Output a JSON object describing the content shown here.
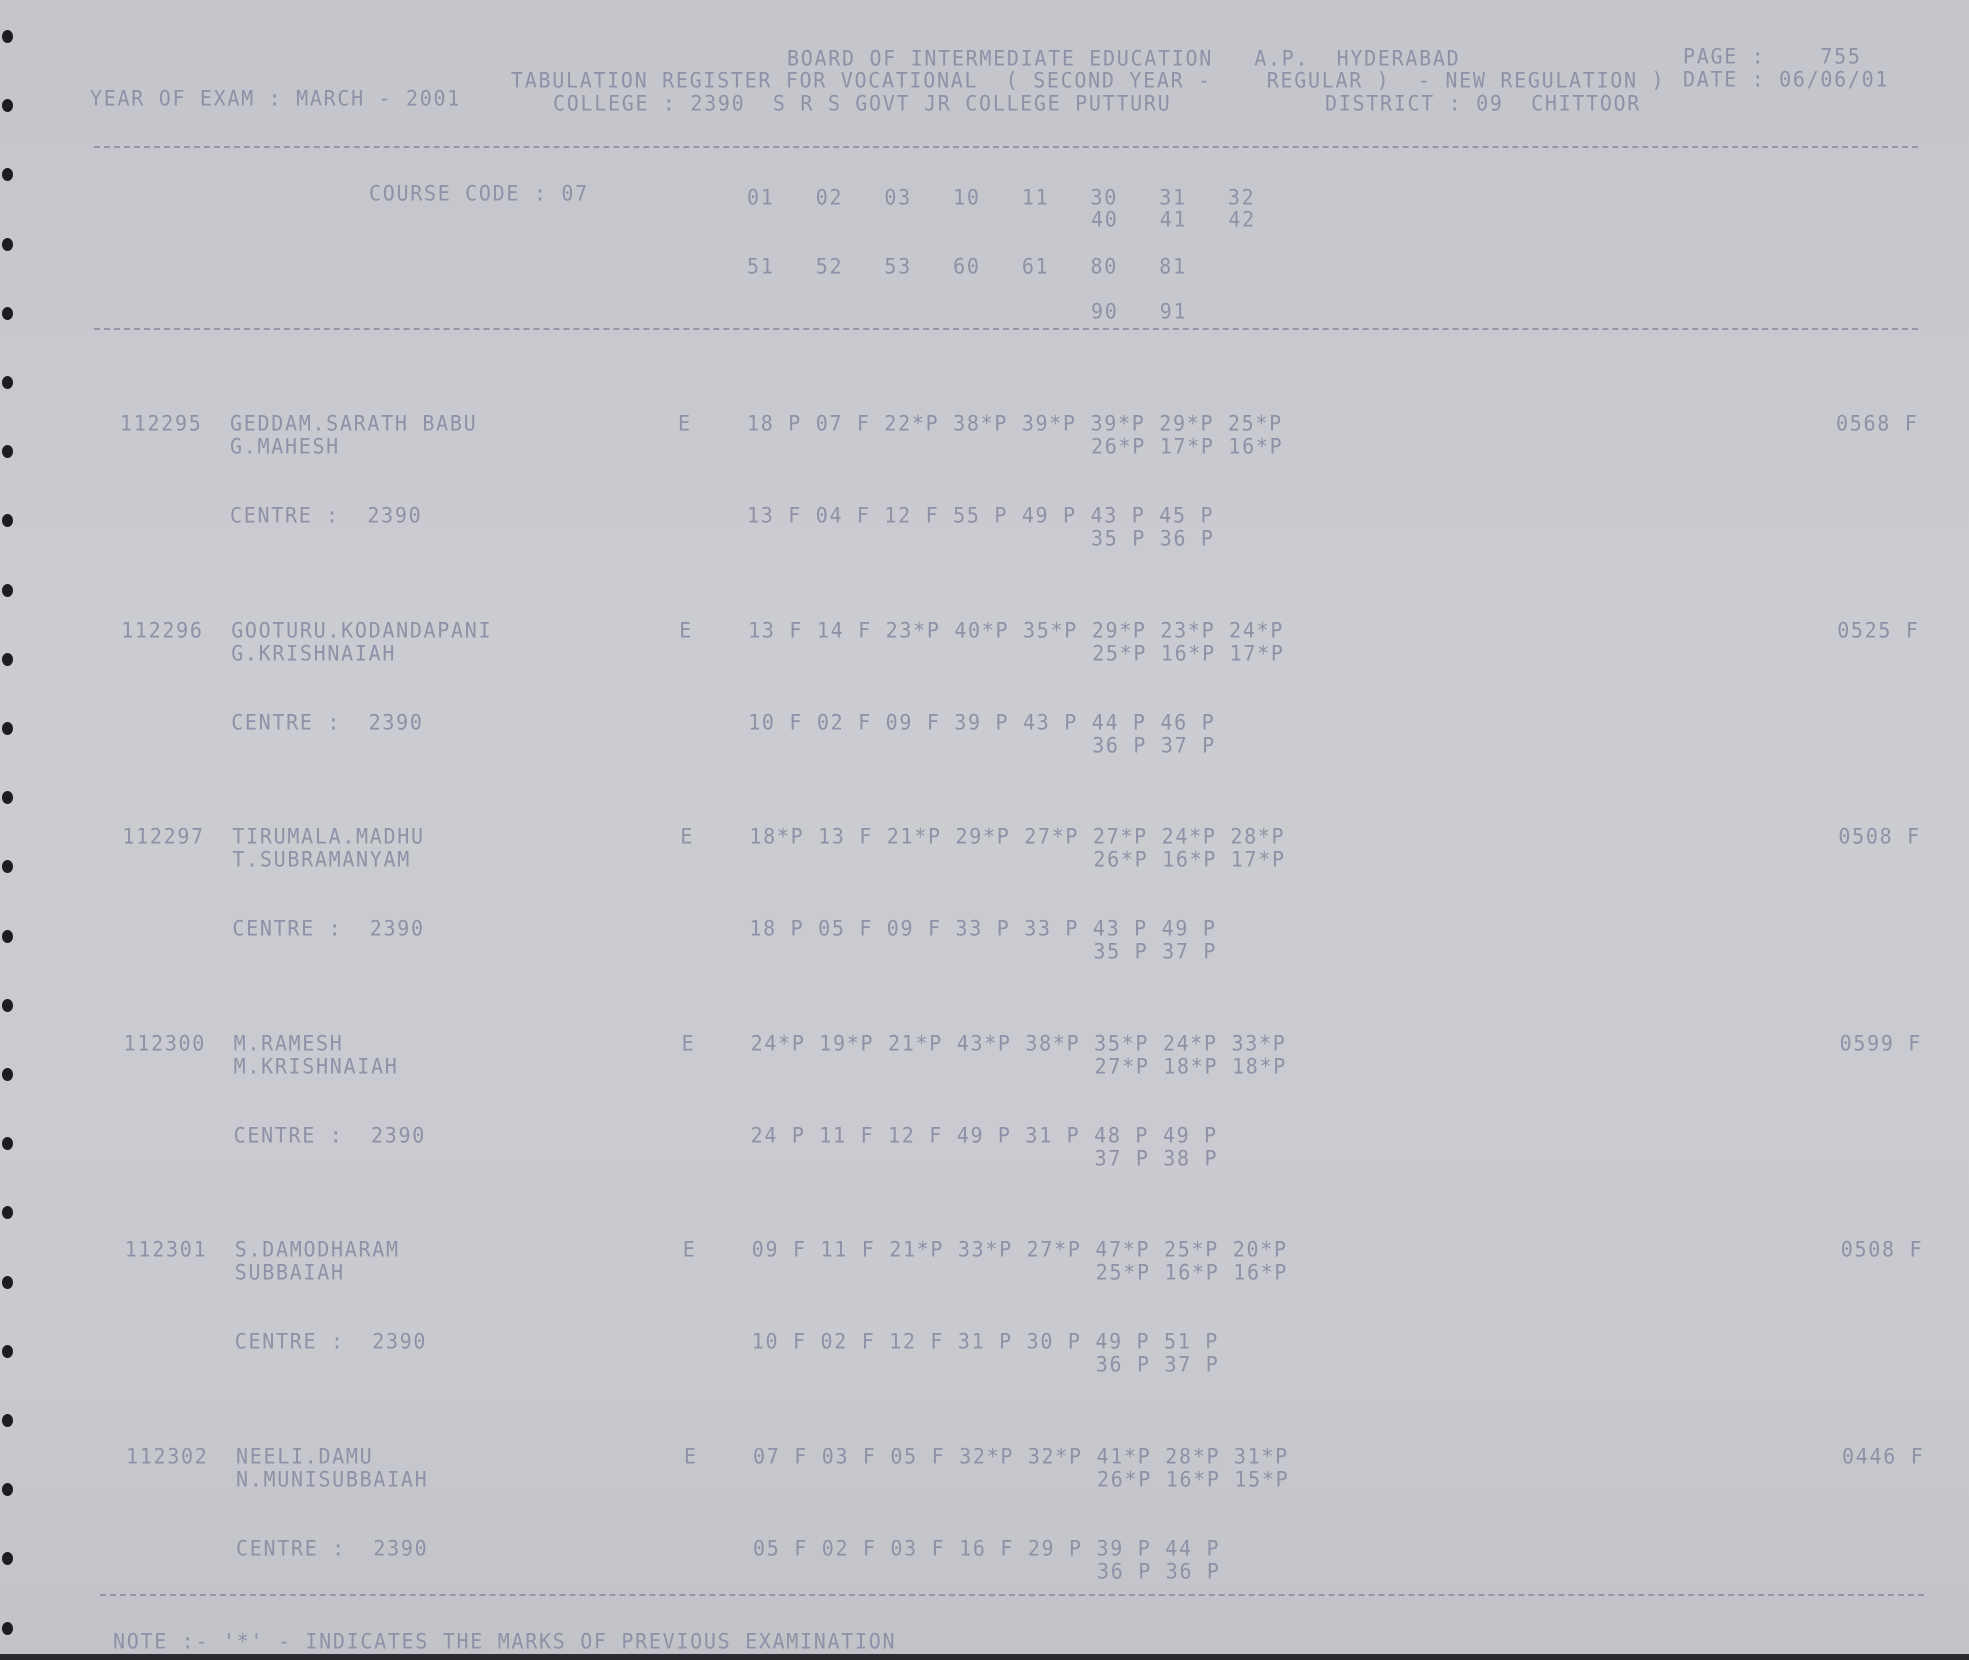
{
  "header": {
    "board": "BOARD OF INTERMEDIATE EDUCATION   A.P.  HYDERABAD",
    "register": "TABULATION REGISTER FOR VOCATIONAL  ( SECOND YEAR -    REGULAR )  - NEW REGULATION )",
    "college": "COLLEGE : 2390  S R S GOVT JR COLLEGE PUTTURU",
    "district": "DISTRICT : 09  CHITTOOR",
    "year_of_exam": "YEAR OF EXAM : MARCH - 2001",
    "page": "PAGE :    755",
    "date": "DATE : 06/06/01"
  },
  "course": {
    "label": "COURSE CODE : 07",
    "row1": "01   02   03   10   11   30   31   32",
    "row2": "40   41   42",
    "row3": "51   52   53   60   61   80   81",
    "row4": "90   91"
  },
  "students": [
    {
      "roll": "112295",
      "name": "GEDDAM.SARATH BABU",
      "father": "G.MAHESH",
      "group": "E",
      "marks1": "18 P 07 F 22*P 38*P 39*P 39*P 29*P 25*P",
      "marks2": "26*P 17*P 16*P",
      "centre": "CENTRE :  2390",
      "cmarks1": "13 F 04 F 12 F 55 P 49 P 43 P 45 P",
      "cmarks2": "35 P 36 P",
      "total": "0568 F"
    },
    {
      "roll": "112296",
      "name": "GOOTURU.KODANDAPANI",
      "father": "G.KRISHNAIAH",
      "group": "E",
      "marks1": "13 F 14 F 23*P 40*P 35*P 29*P 23*P 24*P",
      "marks2": "25*P 16*P 17*P",
      "centre": "CENTRE :  2390",
      "cmarks1": "10 F 02 F 09 F 39 P 43 P 44 P 46 P",
      "cmarks2": "36 P 37 P",
      "total": "0525 F"
    },
    {
      "roll": "112297",
      "name": "TIRUMALA.MADHU",
      "father": "T.SUBRAMANYAM",
      "group": "E",
      "marks1": "18*P 13 F 21*P 29*P 27*P 27*P 24*P 28*P",
      "marks2": "26*P 16*P 17*P",
      "centre": "CENTRE :  2390",
      "cmarks1": "18 P 05 F 09 F 33 P 33 P 43 P 49 P",
      "cmarks2": "35 P 37 P",
      "total": "0508 F"
    },
    {
      "roll": "112300",
      "name": "M.RAMESH",
      "father": "M.KRISHNAIAH",
      "group": "E",
      "marks1": "24*P 19*P 21*P 43*P 38*P 35*P 24*P 33*P",
      "marks2": "27*P 18*P 18*P",
      "centre": "CENTRE :  2390",
      "cmarks1": "24 P 11 F 12 F 49 P 31 P 48 P 49 P",
      "cmarks2": "37 P 38 P",
      "total": "0599 F"
    },
    {
      "roll": "112301",
      "name": "S.DAMODHARAM",
      "father": "SUBBAIAH",
      "group": "E",
      "marks1": "09 F 11 F 21*P 33*P 27*P 47*P 25*P 20*P",
      "marks2": "25*P 16*P 16*P",
      "centre": "CENTRE :  2390",
      "cmarks1": "10 F 02 F 12 F 31 P 30 P 49 P 51 P",
      "cmarks2": "36 P 37 P",
      "total": "0508 F"
    },
    {
      "roll": "112302",
      "name": "NEELI.DAMU",
      "father": "N.MUNISUBBAIAH",
      "group": "E",
      "marks1": "07 F 03 F 05 F 32*P 32*P 41*P 28*P 31*P",
      "marks2": "26*P 16*P 15*P",
      "centre": "CENTRE :  2390",
      "cmarks1": "05 F 02 F 03 F 16 F 29 P 39 P 44 P",
      "cmarks2": "36 P 36 P",
      "total": "0446 F"
    }
  ],
  "note": "NOTE :- '*' - INDICATES THE MARKS OF PREVIOUS EXAMINATION",
  "colors": {
    "ink": "#8f91a6",
    "paper": "#c9cacf"
  }
}
